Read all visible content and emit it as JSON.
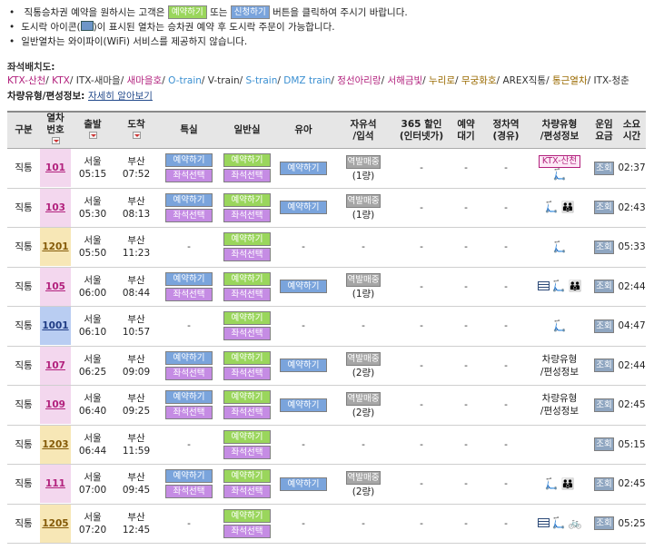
{
  "notes": {
    "line1_pre": "직통승차권 예약을 원하시는 고객은",
    "btn_reserve": "예약하기",
    "line1_mid": "또는",
    "btn_apply": "신청하기",
    "line1_post": "버튼을 클릭하여 주시기 바랍니다.",
    "line2_pre": "도시락 아이콘(",
    "line2_post": ")이 표시된 열차는 승차권 예약 후 도시락 주문이 가능합니다.",
    "line3": "일반열차는 와이파이(WiFi) 서비스를 제공하지 않습니다."
  },
  "seatmap": {
    "title": "좌석배치도:",
    "items": [
      {
        "label": "KTX-산천",
        "color": "#b2217d"
      },
      {
        "label": "KTX",
        "color": "#b2217d"
      },
      {
        "label": "ITX-새마을",
        "color": "#333333"
      },
      {
        "label": "새마을호",
        "color": "#b2217d"
      },
      {
        "label": "O-train",
        "color": "#3a8fd1"
      },
      {
        "label": "V-train",
        "color": "#333333"
      },
      {
        "label": "S-train",
        "color": "#3a8fd1"
      },
      {
        "label": "DMZ train",
        "color": "#3a8fd1"
      },
      {
        "label": "정선아리랑",
        "color": "#b2217d"
      },
      {
        "label": "서해금빛",
        "color": "#b2217d"
      },
      {
        "label": "누리로",
        "color": "#9a6a00"
      },
      {
        "label": "무궁화호",
        "color": "#9a6a00"
      },
      {
        "label": "AREX직통",
        "color": "#333333"
      },
      {
        "label": "통근열차",
        "color": "#9a6a00"
      },
      {
        "label": "ITX-청춘",
        "color": "#333333"
      }
    ]
  },
  "types": {
    "label": "차량유형/편성정보:",
    "link": "자세히 알아보기"
  },
  "headers": {
    "type": "구분",
    "trainno": [
      "열차",
      "번호"
    ],
    "dep": "출발",
    "arr": "도착",
    "first": "특실",
    "normal": "일반실",
    "infant": "유아",
    "free": [
      "자유석",
      "/입석"
    ],
    "discount": [
      "365 할인",
      "(인터넷가)"
    ],
    "wait": [
      "예약",
      "대기"
    ],
    "stop": [
      "정차역",
      "(경유)"
    ],
    "car": [
      "차량유형",
      "/편성정보"
    ],
    "fare": [
      "운임",
      "요금"
    ],
    "dur": [
      "소요",
      "시간"
    ]
  },
  "labels": {
    "reserve": "예약하기",
    "seat_select": "좌석선택",
    "station_sale": "역발매중",
    "inquiry": "조회",
    "dash": "-",
    "ktx_sancheon": "KTX-산천"
  },
  "rows": [
    {
      "type": "직통",
      "no": "101",
      "cls": "ktx",
      "dep_st": "서울",
      "dep_t": "05:15",
      "arr_st": "부산",
      "arr_t": "07:52",
      "first": true,
      "normal": true,
      "infant": true,
      "free": "(1량)",
      "car": "sancheon",
      "dur": "02:37"
    },
    {
      "type": "직통",
      "no": "103",
      "cls": "ktx",
      "dep_st": "서울",
      "dep_t": "05:30",
      "arr_st": "부산",
      "arr_t": "08:13",
      "first": true,
      "normal": true,
      "infant": true,
      "free": "(1량)",
      "car": "bike-family",
      "dur": "02:43"
    },
    {
      "type": "직통",
      "no": "1201",
      "cls": "itx",
      "dep_st": "서울",
      "dep_t": "05:50",
      "arr_st": "부산",
      "arr_t": "11:23",
      "first": false,
      "normal": true,
      "infant": false,
      "free": "",
      "car": "bike",
      "dur": "05:33"
    },
    {
      "type": "직통",
      "no": "105",
      "cls": "ktx",
      "dep_st": "서울",
      "dep_t": "06:00",
      "arr_st": "부산",
      "arr_t": "08:44",
      "first": true,
      "normal": true,
      "infant": true,
      "free": "(1량)",
      "car": "meal-family",
      "dur": "02:44"
    },
    {
      "type": "직통",
      "no": "1001",
      "cls": "mu",
      "dep_st": "서울",
      "dep_t": "06:10",
      "arr_st": "부산",
      "arr_t": "10:57",
      "first": false,
      "normal": true,
      "infant": false,
      "free": "",
      "car": "bike",
      "dur": "04:47"
    },
    {
      "type": "직통",
      "no": "107",
      "cls": "ktx",
      "dep_st": "서울",
      "dep_t": "06:25",
      "arr_st": "부산",
      "arr_t": "09:09",
      "first": true,
      "normal": true,
      "infant": true,
      "free": "(2량)",
      "car": "text",
      "dur": "02:44"
    },
    {
      "type": "직통",
      "no": "109",
      "cls": "ktx",
      "dep_st": "서울",
      "dep_t": "06:40",
      "arr_st": "부산",
      "arr_t": "09:25",
      "first": true,
      "normal": true,
      "infant": true,
      "free": "(2량)",
      "car": "text",
      "dur": "02:45"
    },
    {
      "type": "직통",
      "no": "1203",
      "cls": "itx",
      "dep_st": "서울",
      "dep_t": "06:44",
      "arr_st": "부산",
      "arr_t": "11:59",
      "first": false,
      "normal": true,
      "infant": false,
      "free": "",
      "car": "none",
      "dur": "05:15"
    },
    {
      "type": "직통",
      "no": "111",
      "cls": "ktx",
      "dep_st": "서울",
      "dep_t": "07:00",
      "arr_st": "부산",
      "arr_t": "09:45",
      "first": true,
      "normal": true,
      "infant": true,
      "free": "(2량)",
      "car": "bike-family",
      "dur": "02:45"
    },
    {
      "type": "직통",
      "no": "1205",
      "cls": "itx",
      "dep_st": "서울",
      "dep_t": "07:20",
      "arr_st": "부산",
      "arr_t": "12:45",
      "first": false,
      "normal": true,
      "infant": false,
      "free": "",
      "car": "meal-bike",
      "dur": "05:25"
    }
  ]
}
